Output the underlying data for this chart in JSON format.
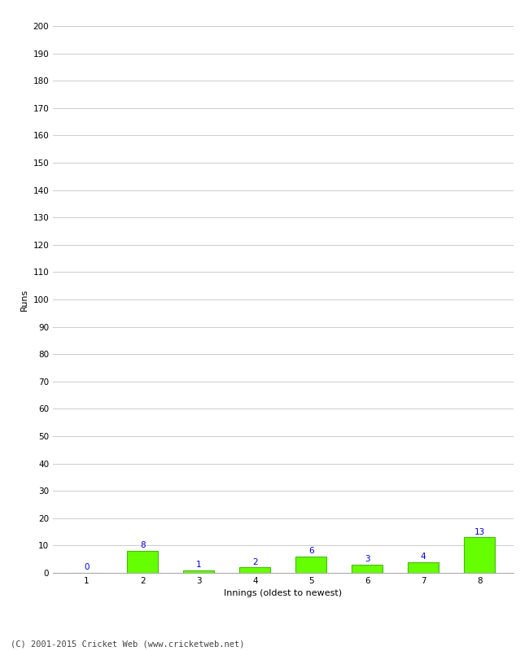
{
  "xlabel": "Innings (oldest to newest)",
  "ylabel": "Runs",
  "categories": [
    "1",
    "2",
    "3",
    "4",
    "5",
    "6",
    "7",
    "8"
  ],
  "values": [
    0,
    8,
    1,
    2,
    6,
    3,
    4,
    13
  ],
  "bar_color": "#66ff00",
  "bar_edge_color": "#44bb00",
  "label_color": "#0000cc",
  "ylim": [
    0,
    200
  ],
  "yticks": [
    0,
    10,
    20,
    30,
    40,
    50,
    60,
    70,
    80,
    90,
    100,
    110,
    120,
    130,
    140,
    150,
    160,
    170,
    180,
    190,
    200
  ],
  "background_color": "#ffffff",
  "grid_color": "#cccccc",
  "footer_text": "(C) 2001-2015 Cricket Web (www.cricketweb.net)",
  "label_fontsize": 7.5,
  "axis_label_fontsize": 8,
  "tick_fontsize": 7.5,
  "footer_fontsize": 7.5,
  "bar_width": 0.55
}
